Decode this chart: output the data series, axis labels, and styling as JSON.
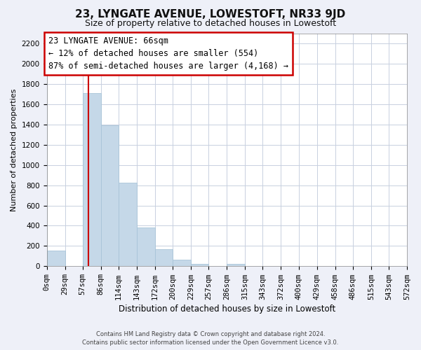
{
  "title": "23, LYNGATE AVENUE, LOWESTOFT, NR33 9JD",
  "subtitle": "Size of property relative to detached houses in Lowestoft",
  "xlabel": "Distribution of detached houses by size in Lowestoft",
  "ylabel": "Number of detached properties",
  "bar_edges": [
    0,
    29,
    57,
    86,
    114,
    143,
    172,
    200,
    229,
    257,
    286,
    315,
    343,
    372,
    400,
    429,
    458,
    486,
    515,
    543,
    572
  ],
  "bar_heights": [
    155,
    0,
    1710,
    1390,
    825,
    385,
    165,
    65,
    25,
    0,
    25,
    0,
    0,
    0,
    0,
    0,
    0,
    0,
    0,
    0
  ],
  "bar_color": "#c5d8e8",
  "bar_edge_color": "#a8c4d8",
  "property_line_x": 66,
  "property_line_color": "#cc0000",
  "ylim": [
    0,
    2300
  ],
  "yticks": [
    0,
    200,
    400,
    600,
    800,
    1000,
    1200,
    1400,
    1600,
    1800,
    2000,
    2200
  ],
  "xtick_labels": [
    "0sqm",
    "29sqm",
    "57sqm",
    "86sqm",
    "114sqm",
    "143sqm",
    "172sqm",
    "200sqm",
    "229sqm",
    "257sqm",
    "286sqm",
    "315sqm",
    "343sqm",
    "372sqm",
    "400sqm",
    "429sqm",
    "458sqm",
    "486sqm",
    "515sqm",
    "543sqm",
    "572sqm"
  ],
  "annotation_title": "23 LYNGATE AVENUE: 66sqm",
  "annotation_line1": "← 12% of detached houses are smaller (554)",
  "annotation_line2": "87% of semi-detached houses are larger (4,168) →",
  "footnote1": "Contains HM Land Registry data © Crown copyright and database right 2024.",
  "footnote2": "Contains public sector information licensed under the Open Government Licence v3.0.",
  "bg_color": "#eef0f8",
  "plot_bg_color": "#ffffff",
  "grid_color": "#c8d0e0",
  "title_fontsize": 11,
  "subtitle_fontsize": 9,
  "ylabel_fontsize": 8,
  "xlabel_fontsize": 8.5,
  "tick_fontsize": 7.5,
  "annot_fontsize": 8.5
}
